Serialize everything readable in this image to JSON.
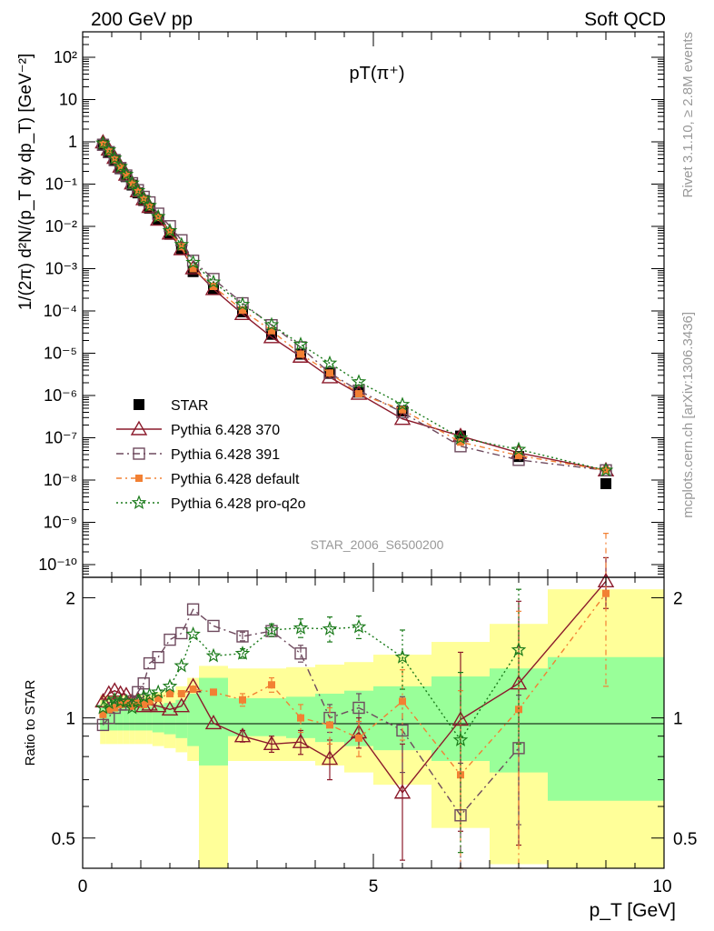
{
  "header": {
    "left": "200 GeV pp",
    "right": "Soft QCD"
  },
  "side_labels": {
    "rivet": "Rivet 3.1.10, ≥ 2.8M events",
    "mcplots": "mcplots.cern.ch [arXiv:1306.3436]"
  },
  "chart_data": [
    {
      "type": "line",
      "panel": "main",
      "title": "pT(π⁺)",
      "watermark": "STAR_2006_S6500200",
      "ylabel": "1/(2π) d²N/(p_T dy dp_T) [GeV⁻²]",
      "xlim": [
        0,
        10
      ],
      "ylim": [
        5e-11,
        400
      ],
      "yscale": "log",
      "legend_position": "bottom-left",
      "ytick_labels": [
        "10⁻¹⁰",
        "10⁻⁹",
        "10⁻⁸",
        "10⁻⁷",
        "10⁻⁶",
        "10⁻⁵",
        "10⁻⁴",
        "10⁻³",
        "10⁻²",
        "10⁻¹",
        "1",
        "10",
        "10²"
      ],
      "ytick_values": [
        1e-10,
        1e-09,
        1e-08,
        1e-07,
        1e-06,
        1e-05,
        0.0001,
        0.001,
        0.01,
        0.1,
        1,
        10,
        100
      ],
      "x": [
        0.35,
        0.45,
        0.55,
        0.65,
        0.75,
        0.85,
        0.95,
        1.05,
        1.15,
        1.3,
        1.5,
        1.7,
        1.9,
        2.25,
        2.75,
        3.25,
        3.75,
        4.25,
        4.75,
        5.5,
        6.5,
        7.5,
        9.0
      ],
      "series": [
        {
          "name": "STAR",
          "values": [
            0.88,
            0.58,
            0.36,
            0.23,
            0.15,
            0.095,
            0.062,
            0.041,
            0.027,
            0.0145,
            0.0065,
            0.0029,
            0.00085,
            0.00033,
            9.5e-05,
            2.8e-05,
            9.5e-06,
            3.4e-06,
            1.2e-06,
            4.3e-07,
            1.1e-07,
            3.6e-08,
            8.2e-09
          ]
        },
        {
          "name": "Pythia 6.428 370",
          "values": [
            0.97,
            0.66,
            0.42,
            0.26,
            0.168,
            0.104,
            0.068,
            0.044,
            0.029,
            0.0145,
            0.0068,
            0.0029,
            0.00102,
            0.00033,
            8.5e-05,
            2.4e-05,
            8.3e-06,
            2.7e-06,
            1.1e-06,
            2.8e-07,
            1.1e-07,
            4.4e-08,
            1.7e-08
          ]
        },
        {
          "name": "Pythia 6.428 391",
          "values": [
            0.85,
            0.57,
            0.37,
            0.24,
            0.16,
            0.105,
            0.072,
            0.05,
            0.037,
            0.02,
            0.0101,
            0.0047,
            0.00154,
            0.00057,
            0.000152,
            4.6e-05,
            1.38e-05,
            3.4e-06,
            1.3e-06,
            4e-07,
            6.3e-08,
            3e-08,
            1.7e-08
          ]
        },
        {
          "name": "Pythia 6.428 default",
          "values": [
            0.88,
            0.6,
            0.38,
            0.25,
            0.163,
            0.101,
            0.067,
            0.044,
            0.029,
            0.0163,
            0.0075,
            0.0033,
            0.001,
            0.00038,
            0.000104,
            3.4e-05,
            9.5e-06,
            3.4e-06,
            1.1e-06,
            4.6e-07,
            7.9e-08,
            3.8e-08,
            1.7e-08
          ]
        },
        {
          "name": "Pythia 6.428 pro-q2o",
          "values": [
            0.93,
            0.64,
            0.41,
            0.26,
            0.17,
            0.105,
            0.07,
            0.046,
            0.031,
            0.017,
            0.0079,
            0.0037,
            0.0014,
            0.00048,
            0.000142,
            4.7e-05,
            1.62e-05,
            5.8e-06,
            2.1e-06,
            6.1e-07,
            9.9e-08,
            5.3e-08,
            1.7e-08
          ]
        }
      ]
    },
    {
      "type": "line",
      "panel": "ratio",
      "ylabel": "Ratio to STAR",
      "xlabel": "p_T [GeV]",
      "xlim": [
        0,
        10
      ],
      "ylim": [
        0.42,
        2.25
      ],
      "xtick_labels": [
        "0",
        "5",
        "10"
      ],
      "xtick_values": [
        0,
        5,
        10
      ],
      "ytick_labels": [
        "0.5",
        "1",
        "2"
      ],
      "ytick_values": [
        0.5,
        1,
        2
      ],
      "x": [
        0.35,
        0.45,
        0.55,
        0.65,
        0.75,
        0.85,
        0.95,
        1.05,
        1.15,
        1.3,
        1.5,
        1.7,
        1.9,
        2.25,
        2.75,
        3.25,
        3.75,
        4.25,
        4.75,
        5.5,
        6.5,
        7.5,
        9.0
      ],
      "bin_edges": [
        0.3,
        0.4,
        0.5,
        0.6,
        0.7,
        0.8,
        0.9,
        1.0,
        1.1,
        1.2,
        1.4,
        1.6,
        1.8,
        2.0,
        2.5,
        3.0,
        3.5,
        4.0,
        4.5,
        5.0,
        6.0,
        7.0,
        8.0,
        10.0
      ],
      "band_inner": [
        [
          0.93,
          1.07
        ],
        [
          0.93,
          1.07
        ],
        [
          0.93,
          1.07
        ],
        [
          0.93,
          1.07
        ],
        [
          0.93,
          1.07
        ],
        [
          0.93,
          1.07
        ],
        [
          0.93,
          1.07
        ],
        [
          0.93,
          1.07
        ],
        [
          0.93,
          1.07
        ],
        [
          0.92,
          1.08
        ],
        [
          0.91,
          1.09
        ],
        [
          0.89,
          1.11
        ],
        [
          0.85,
          1.15
        ],
        [
          0.76,
          1.26
        ],
        [
          0.9,
          1.12
        ],
        [
          0.9,
          1.12
        ],
        [
          0.89,
          1.13
        ],
        [
          0.87,
          1.15
        ],
        [
          0.85,
          1.17
        ],
        [
          0.83,
          1.2
        ],
        [
          0.78,
          1.27
        ],
        [
          0.73,
          1.33
        ],
        [
          0.62,
          1.42
        ],
        [
          0.35,
          1.67
        ]
      ],
      "band_outer": [
        [
          0.86,
          1.14
        ],
        [
          0.86,
          1.14
        ],
        [
          0.86,
          1.14
        ],
        [
          0.86,
          1.14
        ],
        [
          0.86,
          1.14
        ],
        [
          0.86,
          1.14
        ],
        [
          0.86,
          1.14
        ],
        [
          0.86,
          1.14
        ],
        [
          0.86,
          1.14
        ],
        [
          0.85,
          1.16
        ],
        [
          0.84,
          1.17
        ],
        [
          0.82,
          1.2
        ],
        [
          0.78,
          1.26
        ],
        [
          0.37,
          1.35
        ],
        [
          0.78,
          1.33
        ],
        [
          0.78,
          1.33
        ],
        [
          0.78,
          1.34
        ],
        [
          0.76,
          1.36
        ],
        [
          0.73,
          1.38
        ],
        [
          0.68,
          1.44
        ],
        [
          0.53,
          1.55
        ],
        [
          0.43,
          1.72
        ],
        [
          0.37,
          2.1
        ],
        [
          0.35,
          2.15
        ]
      ],
      "series": [
        {
          "name": "Pythia 6.428 370",
          "values": [
            1.1,
            1.15,
            1.17,
            1.15,
            1.14,
            1.1,
            1.11,
            1.07,
            1.08,
            1.07,
            1.05,
            1.07,
            1.2,
            0.97,
            0.9,
            0.86,
            0.87,
            0.79,
            0.92,
            0.65,
            0.99,
            1.22,
            2.2
          ],
          "err": [
            0,
            0,
            0,
            0,
            0,
            0,
            0,
            0,
            0,
            0,
            0,
            0,
            0,
            0,
            0.03,
            0.04,
            0.06,
            0.09,
            0.08,
            0.21,
            0.47,
            0.74,
            0.32
          ]
        },
        {
          "name": "Pythia 6.428 391",
          "values": [
            0.96,
            1.0,
            1.06,
            1.08,
            1.08,
            1.1,
            1.16,
            1.22,
            1.37,
            1.42,
            1.57,
            1.63,
            1.87,
            1.7,
            1.6,
            1.65,
            1.45,
            1.0,
            1.06,
            0.93,
            0.57,
            0.84,
            0
          ],
          "err": [
            0,
            0,
            0,
            0,
            0,
            0,
            0,
            0,
            0,
            0,
            0,
            0,
            0,
            0,
            0.04,
            0.05,
            0.07,
            0.08,
            0.09,
            0.2,
            0.2,
            0.3,
            0
          ]
        },
        {
          "name": "Pythia 6.428 default",
          "values": [
            1.02,
            1.05,
            1.06,
            1.08,
            1.09,
            1.07,
            1.09,
            1.08,
            1.1,
            1.12,
            1.15,
            1.15,
            1.18,
            1.16,
            1.11,
            1.21,
            1.0,
            0.96,
            0.89,
            1.1,
            0.72,
            1.05,
            2.05
          ],
          "err": [
            0,
            0,
            0,
            0,
            0,
            0,
            0,
            0,
            0,
            0,
            0,
            0,
            0,
            0,
            0.04,
            0.05,
            0.08,
            0.1,
            0.09,
            0.22,
            0.45,
            0.8,
            0.85
          ]
        },
        {
          "name": "Pythia 6.428 pro-q2o",
          "values": [
            1.06,
            1.09,
            1.11,
            1.1,
            1.1,
            1.06,
            1.1,
            1.13,
            1.14,
            1.16,
            1.2,
            1.35,
            1.62,
            1.43,
            1.45,
            1.66,
            1.68,
            1.67,
            1.69,
            1.42,
            0.88,
            1.48,
            0
          ],
          "err": [
            0,
            0,
            0,
            0,
            0,
            0,
            0,
            0,
            0,
            0,
            0,
            0,
            0,
            0,
            0.04,
            0.06,
            0.09,
            0.12,
            0.11,
            0.24,
            0.42,
            0.62,
            0
          ]
        }
      ]
    }
  ],
  "legend": {
    "star": "STAR",
    "s370": "Pythia 6.428 370",
    "s391": "Pythia 6.428 391",
    "sdef": "Pythia 6.428 default",
    "sq2o": "Pythia 6.428 pro-q2o"
  },
  "colors": {
    "star": "#000000",
    "s370": "#8b1a2b",
    "s391": "#6e4a5e",
    "sdef": "#f28033",
    "sq2o": "#1a7a1a",
    "band_inner": "#99ff99",
    "band_outer": "#ffff99"
  }
}
